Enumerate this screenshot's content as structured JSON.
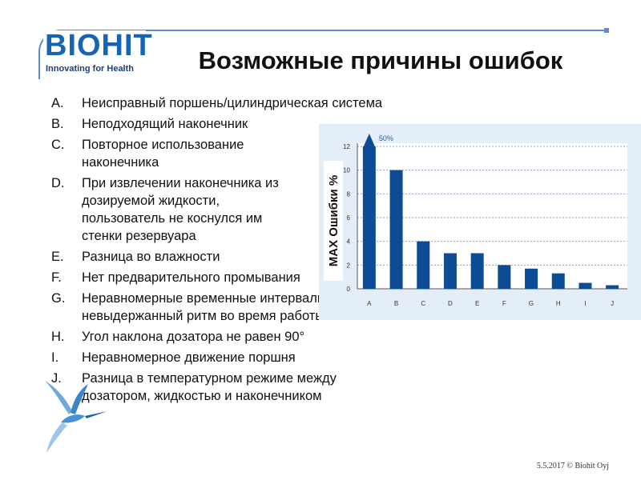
{
  "logo": {
    "brand": "BIOHIT",
    "tagline": "Innovating for Health"
  },
  "title": "Возможные причины ошибок",
  "items": [
    {
      "mark": "A.",
      "text": "Неисправный  поршень/цилиндрическая система"
    },
    {
      "mark": "B.",
      "text": "Неподходящий наконечник"
    },
    {
      "mark": "C.",
      "text": "Повторное использование наконечника"
    },
    {
      "mark": "D.",
      "text": "При извлечении наконечника из дозируемой жидкости, пользователь не коснулся им стенки резервуара"
    },
    {
      "mark": "E.",
      "text": "Разница во влажности"
    },
    {
      "mark": "F.",
      "text": "Нет предварительного промывания"
    },
    {
      "mark": "G.",
      "text": "Неравномерные временные интервалы и невыдержанный ритм во время работы"
    },
    {
      "mark": "H.",
      "text": "Угол наклона дозатора не равен 90°"
    },
    {
      "mark": "I.",
      "text": "Неравномерное движение поршня"
    },
    {
      "mark": "J.",
      "text": "Разница в температурном режиме между дозатором, жидкостью и наконечником"
    }
  ],
  "footer": "5.5.2017 © Biohit Oyj",
  "colors": {
    "bar": "#0d4c94",
    "chart_bg": "#e4eef9",
    "frame": "#5b8ccf",
    "logo": "#1565b4"
  },
  "chart_data": {
    "type": "bar",
    "categories": [
      "A",
      "B",
      "C",
      "D",
      "E",
      "F",
      "G",
      "H",
      "I",
      "J"
    ],
    "values": [
      12,
      10,
      4,
      3,
      3,
      2,
      1.7,
      1.3,
      0.5,
      0.3
    ],
    "ylabel": "MAX Ошибки %",
    "ylim": [
      0,
      12
    ],
    "yticks": [
      "0",
      "2",
      "4",
      "6",
      "8",
      "10",
      "12"
    ],
    "annotation": "50%",
    "grid": true
  }
}
